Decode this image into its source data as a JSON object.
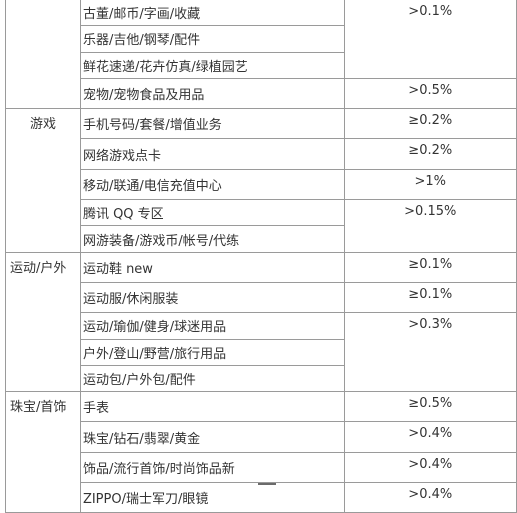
{
  "sections": [
    {
      "category": "",
      "rows": [
        {
          "item": "古董/邮币/字画/收藏",
          "rate": ""
        },
        {
          "item": "乐器/吉他/钢琴/配件",
          "rate": ">0.1%"
        },
        {
          "item": "鲜花速递/花卉仿真/绿植园艺",
          "rate": ""
        },
        {
          "item": "宠物/宠物食品及用品",
          "rate": ">0.5%"
        }
      ]
    },
    {
      "category": "游戏",
      "rows": [
        {
          "item": "手机号码/套餐/增值业务",
          "rate": "≥0.2%"
        },
        {
          "item": "网络游戏点卡",
          "rate": "≥0.2%"
        },
        {
          "item": "移动/联通/电信充值中心",
          "rate": ">1%"
        },
        {
          "item": "腾讯 QQ 专区",
          "rate": ">0.15%"
        },
        {
          "item": "网游装备/游戏币/帐号/代练",
          "rate": ""
        }
      ]
    },
    {
      "category": "运动/户外",
      "rows": [
        {
          "item": "运动鞋 new",
          "rate": "≥0.1%"
        },
        {
          "item": "运动服/休闲服装",
          "rate": "≥0.1%"
        },
        {
          "item": "运动/瑜伽/健身/球迷用品",
          "rate": ">0.3%"
        },
        {
          "item": "户外/登山/野营/旅行用品",
          "rate": ""
        },
        {
          "item": "运动包/户外包/配件",
          "rate": ""
        }
      ]
    },
    {
      "category": "珠宝/首饰",
      "rows": [
        {
          "item": "手表",
          "rate": "≥0.5%"
        },
        {
          "item": "珠宝/钻石/翡翠/黄金",
          "rate": ">0.4%"
        },
        {
          "item": "饰品/流行首饰/时尚饰品新",
          "rate": ">0.4%"
        },
        {
          "item": "ZIPPO/瑞士军刀/眼镜",
          "rate": ">0.4%"
        }
      ]
    }
  ]
}
